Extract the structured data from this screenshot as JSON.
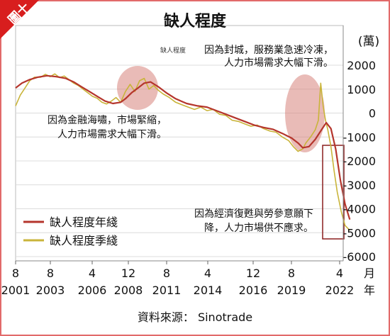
{
  "badge": "圖十",
  "chart_data": {
    "type": "line",
    "title": "缺人程度",
    "unit": "(萬)",
    "x_axis_label": "月\n年",
    "x_ticks": [
      {
        "month": "8",
        "year": "2001"
      },
      {
        "month": "8",
        "year": "2003"
      },
      {
        "month": "4",
        "year": "2006"
      },
      {
        "month": "12",
        "year": "2008"
      },
      {
        "month": "8",
        "year": "2011"
      },
      {
        "month": "4",
        "year": "2014"
      },
      {
        "month": "12",
        "year": "2016"
      },
      {
        "month": "8",
        "year": "2019"
      },
      {
        "month": "4",
        "year": "2022"
      }
    ],
    "y_ticks": [
      2000,
      1000,
      0,
      -1000,
      -2000,
      -3000,
      -4000,
      -5000,
      -6000
    ],
    "ylim": [
      -6000,
      2000
    ],
    "small_label": "缺人程度",
    "series": [
      {
        "name": "缺人程度年綫",
        "color": "#b5352c",
        "points": [
          [
            2001.6,
            1050
          ],
          [
            2002.0,
            1250
          ],
          [
            2002.5,
            1400
          ],
          [
            2003.0,
            1500
          ],
          [
            2003.6,
            1560
          ],
          [
            2004.2,
            1520
          ],
          [
            2004.8,
            1450
          ],
          [
            2005.3,
            1300
          ],
          [
            2005.8,
            1100
          ],
          [
            2006.3,
            900
          ],
          [
            2006.8,
            700
          ],
          [
            2007.3,
            500
          ],
          [
            2007.8,
            400
          ],
          [
            2008.3,
            450
          ],
          [
            2008.6,
            600
          ],
          [
            2009.0,
            850
          ],
          [
            2009.4,
            1050
          ],
          [
            2009.8,
            1250
          ],
          [
            2010.2,
            1300
          ],
          [
            2010.7,
            1100
          ],
          [
            2011.2,
            850
          ],
          [
            2011.8,
            600
          ],
          [
            2012.5,
            400
          ],
          [
            2013.2,
            300
          ],
          [
            2013.8,
            250
          ],
          [
            2014.4,
            100
          ],
          [
            2015.0,
            -50
          ],
          [
            2015.6,
            -200
          ],
          [
            2016.2,
            -350
          ],
          [
            2016.8,
            -500
          ],
          [
            2017.4,
            -600
          ],
          [
            2018.0,
            -680
          ],
          [
            2018.6,
            -850
          ],
          [
            2019.2,
            -1050
          ],
          [
            2019.6,
            -1250
          ],
          [
            2019.9,
            -1450
          ],
          [
            2020.3,
            -1400
          ],
          [
            2020.7,
            -1100
          ],
          [
            2021.1,
            -700
          ],
          [
            2021.4,
            -400
          ],
          [
            2021.7,
            -650
          ],
          [
            2022.0,
            -1500
          ],
          [
            2022.3,
            -2800
          ],
          [
            2022.6,
            -3800
          ],
          [
            2022.9,
            -4450
          ]
        ]
      },
      {
        "name": "缺人程度季綫",
        "color": "#c9b43a",
        "points": [
          [
            2001.6,
            300
          ],
          [
            2001.9,
            750
          ],
          [
            2002.2,
            1050
          ],
          [
            2002.5,
            1350
          ],
          [
            2002.8,
            1500
          ],
          [
            2003.2,
            1500
          ],
          [
            2003.5,
            1620
          ],
          [
            2003.8,
            1520
          ],
          [
            2004.1,
            1640
          ],
          [
            2004.4,
            1480
          ],
          [
            2004.7,
            1550
          ],
          [
            2005.0,
            1400
          ],
          [
            2005.3,
            1250
          ],
          [
            2005.6,
            1150
          ],
          [
            2005.9,
            1000
          ],
          [
            2006.2,
            850
          ],
          [
            2006.5,
            700
          ],
          [
            2006.8,
            620
          ],
          [
            2007.1,
            450
          ],
          [
            2007.4,
            380
          ],
          [
            2007.7,
            500
          ],
          [
            2008.0,
            650
          ],
          [
            2008.3,
            450
          ],
          [
            2008.6,
            900
          ],
          [
            2008.9,
            1200
          ],
          [
            2009.2,
            900
          ],
          [
            2009.5,
            1350
          ],
          [
            2009.8,
            1450
          ],
          [
            2010.1,
            1000
          ],
          [
            2010.4,
            1150
          ],
          [
            2010.7,
            950
          ],
          [
            2011.0,
            800
          ],
          [
            2011.4,
            650
          ],
          [
            2011.8,
            450
          ],
          [
            2012.2,
            350
          ],
          [
            2012.6,
            250
          ],
          [
            2013.0,
            150
          ],
          [
            2013.4,
            250
          ],
          [
            2013.8,
            100
          ],
          [
            2014.2,
            150
          ],
          [
            2014.6,
            -50
          ],
          [
            2015.0,
            -100
          ],
          [
            2015.4,
            -300
          ],
          [
            2015.8,
            -350
          ],
          [
            2016.2,
            -450
          ],
          [
            2016.6,
            -550
          ],
          [
            2017.0,
            -500
          ],
          [
            2017.4,
            -650
          ],
          [
            2017.8,
            -750
          ],
          [
            2018.2,
            -800
          ],
          [
            2018.6,
            -1000
          ],
          [
            2019.0,
            -1150
          ],
          [
            2019.3,
            -1400
          ],
          [
            2019.6,
            -1600
          ],
          [
            2019.9,
            -1500
          ],
          [
            2020.1,
            -1250
          ],
          [
            2020.4,
            -1000
          ],
          [
            2020.7,
            -700
          ],
          [
            2020.9,
            -300
          ],
          [
            2021.05,
            1250
          ],
          [
            2021.2,
            300
          ],
          [
            2021.35,
            -300
          ],
          [
            2021.5,
            -700
          ],
          [
            2021.7,
            -1400
          ],
          [
            2021.9,
            -2400
          ],
          [
            2022.1,
            -3300
          ],
          [
            2022.35,
            -4100
          ],
          [
            2022.6,
            -4700
          ],
          [
            2022.9,
            -4900
          ]
        ]
      }
    ]
  },
  "annotations": {
    "lockdown": "因為封城，服務業急速冷凍，\n人力市場需求大幅下滑。",
    "financial": "因為金融海嘯，市場緊縮，\n人力市場需求大幅下滑。",
    "recovery": "因為經濟復甦與勞參意願下\n降，人力市場供不應求。"
  },
  "source": "資料來源： Sinotrade"
}
